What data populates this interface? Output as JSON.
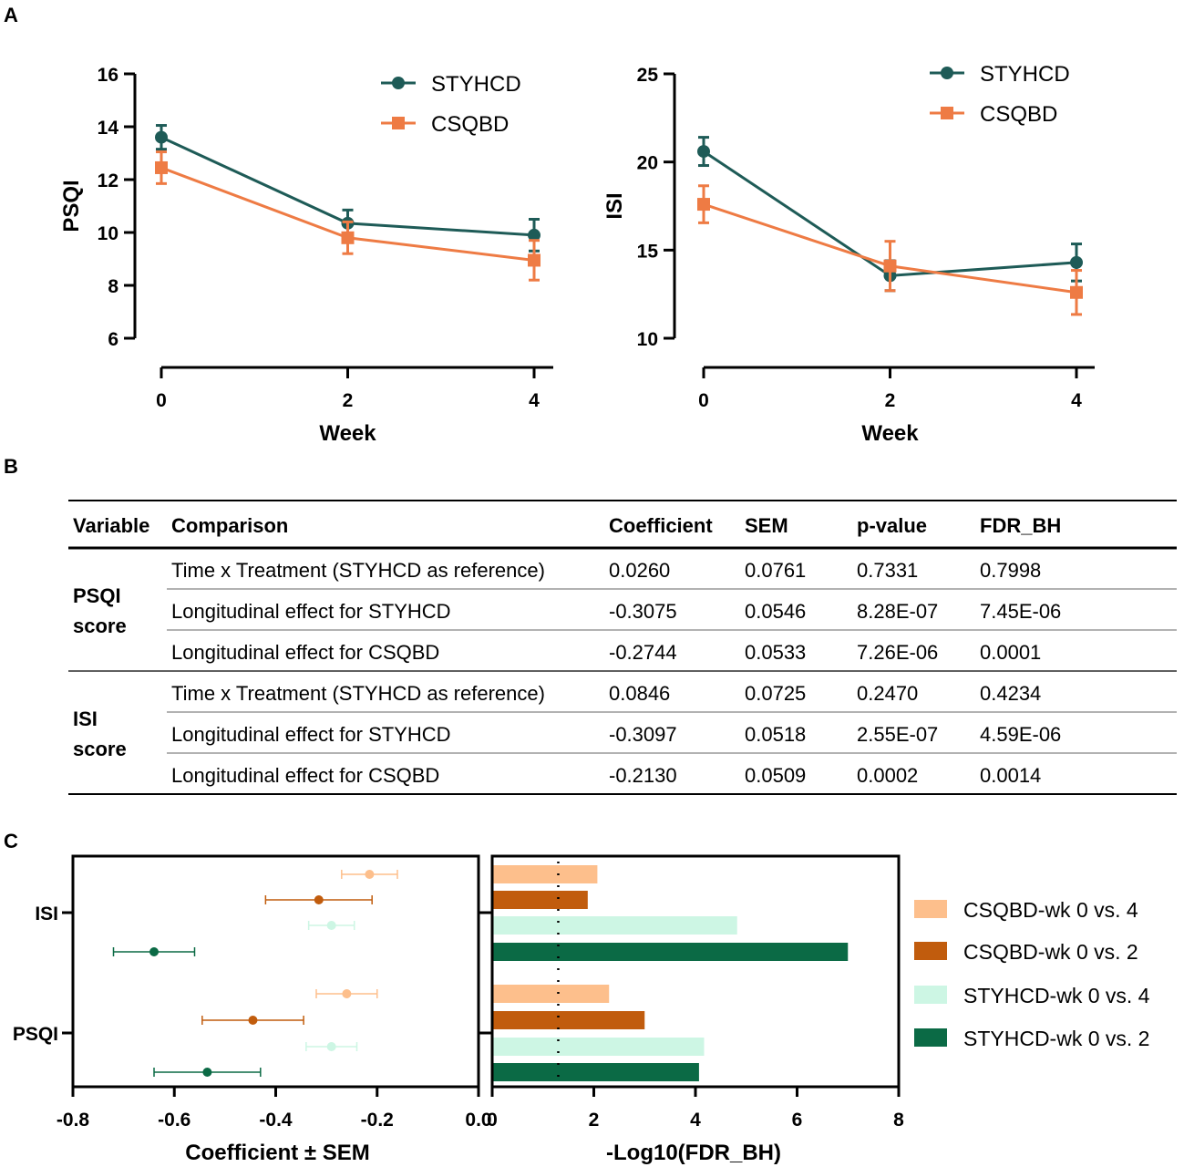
{
  "panels": {
    "A": "A",
    "B": "B",
    "C": "C"
  },
  "colors": {
    "styhcd": "#1e5b57",
    "csqbd": "#ee7b44",
    "c_light_orange": "#fdbf8c",
    "c_dark_orange": "#c15c0d",
    "c_light_mint": "#cdf6e4",
    "c_dark_green": "#0b6a45"
  },
  "chart_data": [
    {
      "id": "psqi",
      "type": "line",
      "xlabel": "Week",
      "ylabel": "PSQI",
      "x": [
        0,
        2,
        4
      ],
      "xticks": [
        "0",
        "2",
        "4"
      ],
      "ylim": [
        6,
        16
      ],
      "yticks": [
        "6",
        "8",
        "10",
        "12",
        "14",
        "16"
      ],
      "legend": "top-right",
      "series": [
        {
          "name": "STYHCD",
          "marker": "circle",
          "values": [
            13.6,
            10.35,
            9.9
          ],
          "err": [
            0.45,
            0.5,
            0.6
          ]
        },
        {
          "name": "CSQBD",
          "marker": "square",
          "values": [
            12.45,
            9.8,
            8.95
          ],
          "err": [
            0.6,
            0.6,
            0.75
          ]
        }
      ]
    },
    {
      "id": "isi",
      "type": "line",
      "xlabel": "Week",
      "ylabel": "ISI",
      "x": [
        0,
        2,
        4
      ],
      "xticks": [
        "0",
        "2",
        "4"
      ],
      "ylim": [
        10,
        25
      ],
      "yticks": [
        "10",
        "15",
        "20",
        "25"
      ],
      "legend": "top-right",
      "series": [
        {
          "name": "STYHCD",
          "marker": "circle",
          "values": [
            20.6,
            13.55,
            14.3
          ],
          "err": [
            0.8,
            0.85,
            1.05
          ]
        },
        {
          "name": "CSQBD",
          "marker": "square",
          "values": [
            17.6,
            14.1,
            12.6
          ],
          "err": [
            1.05,
            1.4,
            1.25
          ]
        }
      ]
    },
    {
      "id": "table",
      "type": "table",
      "headers": [
        "Variable",
        "Comparison",
        "Coefficient",
        "SEM",
        "p-value",
        "FDR_BH"
      ],
      "groups": [
        {
          "variable": [
            "PSQI",
            "score"
          ],
          "rows": [
            [
              "Time x Treatment (STYHCD as reference)",
              "0.0260",
              "0.0761",
              "0.7331",
              "0.7998"
            ],
            [
              "Longitudinal effect for STYHCD",
              "-0.3075",
              "0.0546",
              "8.28E-07",
              "7.45E-06"
            ],
            [
              "Longitudinal effect for CSQBD",
              "-0.2744",
              "0.0533",
              "7.26E-06",
              "0.0001"
            ]
          ]
        },
        {
          "variable": [
            "ISI",
            "score"
          ],
          "rows": [
            [
              "Time x Treatment (STYHCD as reference)",
              "0.0846",
              "0.0725",
              "0.2470",
              "0.4234"
            ],
            [
              "Longitudinal effect for STYHCD",
              "-0.3097",
              "0.0518",
              "2.55E-07",
              "4.59E-06"
            ],
            [
              "Longitudinal effect for CSQBD",
              "-0.2130",
              "0.0509",
              "0.0002",
              "0.0014"
            ]
          ]
        }
      ]
    },
    {
      "id": "coef",
      "type": "scatter",
      "xlabel": "Coefficient ± SEM",
      "xlim": [
        -0.8,
        0.0
      ],
      "xticks": [
        "-0.8",
        "-0.6",
        "-0.4",
        "-0.2",
        "0.0"
      ],
      "ycategories": [
        "ISI",
        "PSQI"
      ],
      "groups": [
        {
          "name": "ISI",
          "points": [
            {
              "series": "CSQBD-wk 0 vs. 4",
              "value": -0.215,
              "sem": 0.055
            },
            {
              "series": "CSQBD-wk 0 vs. 2",
              "value": -0.315,
              "sem": 0.105
            },
            {
              "series": "STYHCD-wk 0 vs. 4",
              "value": -0.29,
              "sem": 0.045
            },
            {
              "series": "STYHCD-wk 0 vs. 2",
              "value": -0.64,
              "sem": 0.08
            }
          ]
        },
        {
          "name": "PSQI",
          "points": [
            {
              "series": "CSQBD-wk 0 vs. 4",
              "value": -0.26,
              "sem": 0.06
            },
            {
              "series": "CSQBD-wk 0 vs. 2",
              "value": -0.445,
              "sem": 0.1
            },
            {
              "series": "STYHCD-wk 0 vs. 4",
              "value": -0.29,
              "sem": 0.05
            },
            {
              "series": "STYHCD-wk 0 vs. 2",
              "value": -0.535,
              "sem": 0.105
            }
          ]
        }
      ]
    },
    {
      "id": "fdr",
      "type": "bar",
      "xlabel": "-Log10(FDR_BH)",
      "xlim": [
        0,
        8
      ],
      "xticks": [
        "0",
        "2",
        "4",
        "6",
        "8"
      ],
      "threshold": 1.3,
      "legend": "right",
      "series": [
        "CSQBD-wk 0 vs. 4",
        "CSQBD-wk 0 vs. 2",
        "STYHCD-wk 0 vs. 4",
        "STYHCD-wk 0 vs. 2"
      ],
      "groups": [
        {
          "name": "ISI",
          "values": [
            2.07,
            1.88,
            4.82,
            7.0
          ]
        },
        {
          "name": "PSQI",
          "values": [
            2.3,
            3.0,
            4.17,
            4.07
          ]
        }
      ]
    }
  ]
}
